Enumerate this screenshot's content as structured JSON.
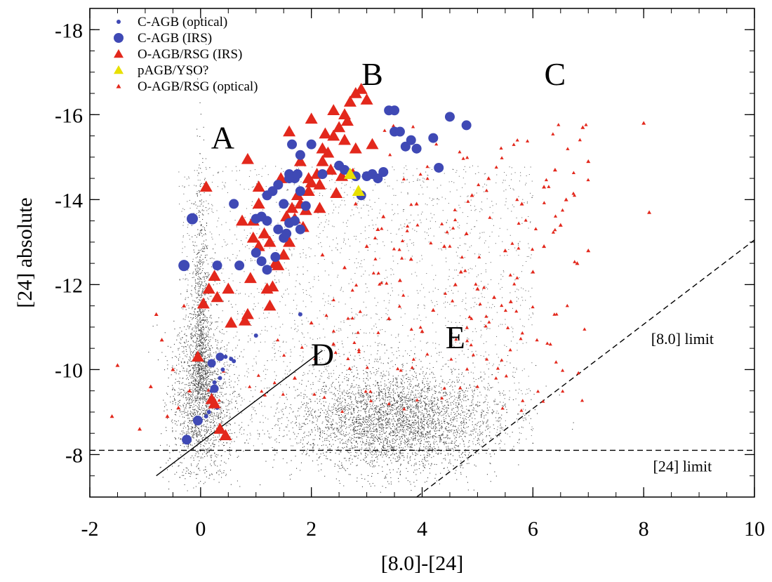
{
  "chart_data": {
    "type": "scatter",
    "title": "",
    "xlabel": "[8.0]-[24]",
    "ylabel": "[24] absolute",
    "xlim": [
      -2,
      10
    ],
    "ylim": [
      -7,
      -18.5
    ],
    "y_inverted": true,
    "x_ticks": [
      -2,
      0,
      2,
      4,
      6,
      8,
      10
    ],
    "y_ticks": [
      -8,
      -10,
      -12,
      -14,
      -16,
      -18
    ],
    "x_tick_labels": [
      "-2",
      "0",
      "2",
      "4",
      "6",
      "8",
      "10"
    ],
    "y_tick_labels": [
      "-8",
      "-10",
      "-12",
      "-14",
      "-16",
      "-18"
    ],
    "legend_position": "top-left",
    "legend": [
      {
        "label": "C-AGB (optical)",
        "marker": "small-circle",
        "color": "#3f49b5"
      },
      {
        "label": "C-AGB (IRS)",
        "marker": "circle",
        "color": "#3f49b5"
      },
      {
        "label": "O-AGB/RSG (IRS)",
        "marker": "triangle",
        "color": "#e3281c"
      },
      {
        "label": "pAGB/YSO?",
        "marker": "triangle",
        "color": "#e8e000"
      },
      {
        "label": "O-AGB/RSG (optical)",
        "marker": "small-triangle",
        "color": "#e3281c"
      }
    ],
    "background_population": {
      "color": "#000000",
      "clusters": [
        {
          "x": 0.0,
          "y": -9.3,
          "sx": 0.28,
          "sy": 1.0
        },
        {
          "x": 3.5,
          "y": -8.8,
          "sx": 0.9,
          "sy": 0.6
        },
        {
          "x": 2.8,
          "y": -11.5,
          "sx": 2.0,
          "sy": 2.2
        }
      ]
    },
    "series": [
      {
        "name": "C-AGB (IRS)",
        "marker": "circle",
        "color": "#3f49b5",
        "x": [
          -0.3,
          -0.15,
          0.6,
          0.3,
          0.7,
          1.0,
          1.1,
          1.2,
          1.35,
          1.5,
          1.6,
          1.7,
          1.8,
          1.2,
          1.3,
          1.4,
          1.5,
          1.6,
          1.7,
          1.8,
          1.9,
          1.0,
          1.1,
          1.2,
          1.4,
          1.55,
          1.6,
          1.8,
          2.0,
          2.2,
          2.8,
          3.0,
          3.1,
          3.2,
          3.3,
          3.5,
          3.6,
          3.7,
          3.8,
          3.9,
          4.2,
          4.3,
          4.5,
          4.8,
          3.4,
          3.5,
          2.5,
          2.6,
          2.9,
          1.65,
          1.75,
          0.2,
          0.35,
          0.25,
          -0.25,
          -0.05
        ],
        "y": [
          -12.45,
          -13.55,
          -13.9,
          -12.45,
          -12.45,
          -12.75,
          -12.55,
          -12.35,
          -12.65,
          -13.1,
          -13.45,
          -13.5,
          -13.3,
          -14.1,
          -14.2,
          -14.35,
          -13.9,
          -14.6,
          -14.5,
          -14.2,
          -13.85,
          -13.55,
          -13.6,
          -13.5,
          -13.3,
          -13.2,
          -14.5,
          -15.05,
          -15.3,
          -14.6,
          -14.55,
          -14.55,
          -14.6,
          -14.5,
          -14.65,
          -15.6,
          -15.6,
          -15.25,
          -15.4,
          -15.2,
          -15.45,
          -14.75,
          -15.95,
          -15.75,
          -16.1,
          -16.1,
          -14.8,
          -14.7,
          -14.1,
          -15.3,
          -14.6,
          -10.15,
          -10.3,
          -9.55,
          -8.35,
          -8.8
        ],
        "size": [
          8,
          8,
          7,
          7,
          7,
          7,
          7,
          7,
          7,
          7,
          7,
          7,
          7,
          7,
          7,
          7,
          7,
          7,
          7,
          7,
          7,
          7,
          7,
          7,
          7,
          7,
          7,
          7,
          7,
          7,
          7,
          7,
          7,
          7,
          7,
          7,
          7,
          7,
          7,
          7,
          7,
          7,
          7,
          7,
          7,
          7,
          7,
          7,
          7,
          7,
          7,
          6,
          6,
          6,
          7,
          7
        ]
      },
      {
        "name": "O-AGB/RSG (IRS)",
        "marker": "triangle",
        "color": "#e3281c",
        "x": [
          0.1,
          0.25,
          0.5,
          0.8,
          0.9,
          0.95,
          1.05,
          1.2,
          1.3,
          1.4,
          1.5,
          1.6,
          1.7,
          1.8,
          1.9,
          2.0,
          2.1,
          2.2,
          2.3,
          2.4,
          2.5,
          2.6,
          2.7,
          2.8,
          2.9,
          3.0,
          1.6,
          1.8,
          2.0,
          2.2,
          2.4,
          2.6,
          2.8,
          3.1,
          1.25,
          1.35,
          0.95,
          1.15,
          1.45,
          1.65,
          1.75,
          1.95,
          2.15,
          2.35,
          2.55,
          2.75,
          2.45,
          2.15,
          1.85,
          1.55,
          1.25,
          0.75,
          1.05,
          0.3,
          0.55,
          0.85,
          0.35,
          0.45,
          0.25,
          0.2,
          -0.05,
          0.05,
          1.05,
          0.85,
          2.25,
          2.65,
          1.95,
          0.15
        ],
        "y": [
          -14.3,
          -12.2,
          -11.9,
          -11.15,
          -12.15,
          -13.5,
          -12.9,
          -11.9,
          -11.95,
          -12.45,
          -12.7,
          -13.0,
          -13.55,
          -13.9,
          -13.75,
          -14.4,
          -14.6,
          -14.9,
          -15.1,
          -15.5,
          -15.7,
          -16.0,
          -16.3,
          -16.5,
          -16.6,
          -16.35,
          -15.6,
          -14.9,
          -15.9,
          -15.2,
          -16.1,
          -15.4,
          -15.2,
          -15.3,
          -11.5,
          -12.5,
          -13.1,
          -13.2,
          -14.5,
          -13.8,
          -14.1,
          -14.2,
          -14.35,
          -14.7,
          -14.55,
          -14.6,
          -14.15,
          -13.8,
          -13.35,
          -13.6,
          -13.0,
          -13.5,
          -13.9,
          -11.7,
          -11.1,
          -11.3,
          -8.6,
          -8.45,
          -9.2,
          -9.3,
          -10.3,
          -11.55,
          -14.3,
          -14.95,
          -15.55,
          -15.85,
          -14.5,
          -11.9
        ],
        "size": [
          9,
          9,
          9,
          9,
          9,
          9,
          9,
          9,
          9,
          9,
          9,
          9,
          9,
          9,
          9,
          9,
          9,
          9,
          9,
          9,
          9,
          9,
          9,
          9,
          9,
          9,
          9,
          9,
          9,
          9,
          9,
          9,
          9,
          9,
          9,
          9,
          9,
          9,
          9,
          9,
          9,
          9,
          9,
          9,
          9,
          9,
          9,
          9,
          9,
          9,
          9,
          9,
          9,
          9,
          9,
          9,
          9,
          9,
          9,
          9,
          9,
          9,
          9,
          9,
          9,
          9,
          9,
          9
        ]
      },
      {
        "name": "pAGB/YSO?",
        "marker": "triangle",
        "color": "#e8e000",
        "x": [
          2.7,
          2.85
        ],
        "y": [
          -14.6,
          -14.2
        ],
        "size": [
          9,
          9
        ]
      },
      {
        "name": "C-AGB (optical)",
        "marker": "small-circle",
        "color": "#3f49b5",
        "x": [
          0.2,
          0.35,
          0.45,
          0.6,
          0.15,
          0.3,
          0.25,
          0.4,
          1.8,
          1.0,
          0.55,
          0.1
        ],
        "y": [
          -9.5,
          -9.8,
          -10.3,
          -10.2,
          -9.0,
          -9.1,
          -9.7,
          -10.0,
          -11.3,
          -10.8,
          -10.25,
          -8.9
        ],
        "size": [
          3,
          3,
          3,
          3,
          3,
          3,
          3,
          3,
          3,
          3,
          3,
          3
        ]
      },
      {
        "name": "O-AGB/RSG (optical)",
        "marker": "small-triangle",
        "color": "#e3281c",
        "scatter_region": {
          "x": [
            0.0,
            7.0
          ],
          "y": [
            -9.0,
            -15.8
          ]
        },
        "x": [
          -1.6,
          -1.5,
          -1.1,
          -0.9,
          -0.6,
          -0.4,
          -0.3,
          -0.5,
          -0.7,
          -0.8,
          -0.2,
          5.0,
          5.5,
          6.0,
          6.2,
          6.5,
          6.8,
          7.0,
          8.0,
          8.1,
          6.9,
          6.6,
          4.6,
          4.8,
          3.8,
          4.2,
          5.2,
          5.8,
          6.2,
          6.4,
          7.0,
          4.4,
          3.6,
          3.4,
          4.0,
          2.2,
          2.6,
          3.0,
          3.2,
          2.8,
          5.6,
          4.9,
          4.7,
          5.3,
          3.3,
          3.9,
          1.7,
          2.0,
          2.4
        ],
        "y": [
          -8.9,
          -10.1,
          -8.6,
          -9.6,
          -8.9,
          -9.1,
          -11.5,
          -10.0,
          -10.7,
          -11.3,
          -9.5,
          -11.9,
          -12.8,
          -12.3,
          -12.9,
          -13.4,
          -12.5,
          -12.8,
          -15.8,
          -13.7,
          -15.7,
          -14.0,
          -12.0,
          -13.2,
          -12.6,
          -11.4,
          -14.5,
          -13.9,
          -14.3,
          -14.7,
          -14.9,
          -12.9,
          -12.1,
          -11.2,
          -10.9,
          -12.7,
          -12.4,
          -12.9,
          -13.3,
          -13.9,
          -11.6,
          -14.1,
          -12.3,
          -11.7,
          -13.6,
          -13.9,
          -9.8,
          -11.1,
          -10.6
        ],
        "size": [
          3,
          3,
          3,
          3,
          3,
          3,
          3,
          3,
          3,
          3,
          3,
          3,
          3,
          3,
          3,
          3,
          3,
          3,
          3,
          3,
          3,
          3,
          3,
          3,
          3,
          3,
          3,
          3,
          3,
          3,
          3,
          3,
          3,
          3,
          3,
          3,
          3,
          3,
          3,
          3,
          3,
          3,
          3,
          3,
          3,
          3,
          3,
          3,
          3
        ]
      }
    ],
    "lines": [
      {
        "name": "[24] limit",
        "style": "dashed",
        "x": [
          -2,
          10
        ],
        "y": [
          -8.1,
          -8.1
        ]
      },
      {
        "name": "[8.0] limit",
        "style": "dashed",
        "x": [
          3.9,
          10
        ],
        "y": [
          -7.0,
          -13.05
        ]
      },
      {
        "name": "D-boundary",
        "style": "solid",
        "x": [
          -0.8,
          2.2
        ],
        "y": [
          -7.5,
          -10.45
        ]
      }
    ],
    "annotations": [
      {
        "text": "A",
        "x": 0.4,
        "y": -15.2
      },
      {
        "text": "B",
        "x": 3.1,
        "y": -16.7
      },
      {
        "text": "C",
        "x": 6.4,
        "y": -16.7
      },
      {
        "text": "D",
        "x": 2.2,
        "y": -10.1
      },
      {
        "text": "E",
        "x": 4.6,
        "y": -10.5
      }
    ],
    "limit_labels": [
      {
        "text": "[8.0] limit",
        "x": 8.7,
        "y": -10.6
      },
      {
        "text": "[24] limit",
        "x": 8.7,
        "y": -7.6
      }
    ]
  }
}
